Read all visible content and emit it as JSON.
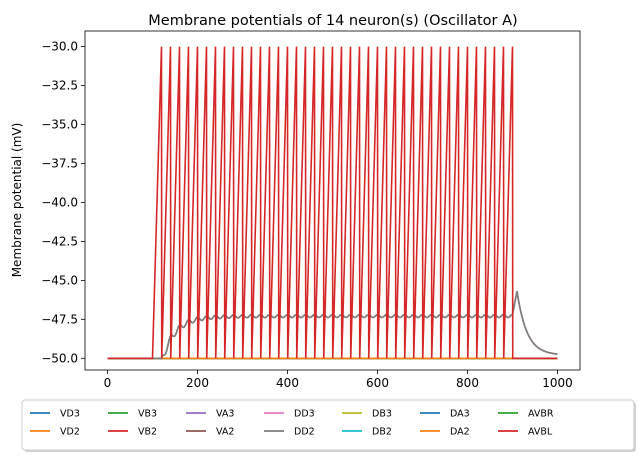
{
  "chart_data": {
    "type": "line",
    "title": "Membrane potentials of 14 neuron(s) (Oscillator A)",
    "xlabel": "",
    "ylabel": "Membrane potential (mV)",
    "xlim": [
      -50,
      1050
    ],
    "ylim": [
      -50.75,
      -29.0
    ],
    "xticks": [
      0,
      200,
      400,
      600,
      800,
      1000
    ],
    "yticks": [
      -50.0,
      -47.5,
      -45.0,
      -42.5,
      -40.0,
      -37.5,
      -35.0,
      -32.5,
      -30.0
    ],
    "ytick_labels": [
      "−50.0",
      "−47.5",
      "−45.0",
      "−42.5",
      "−40.0",
      "−37.5",
      "−35.0",
      "−32.5",
      "−30.0"
    ],
    "grid": false,
    "legend_position": "bottom-center",
    "legend_entries": [
      {
        "name": "VD3",
        "color": "#1f77b4"
      },
      {
        "name": "VD2",
        "color": "#ff7f0e"
      },
      {
        "name": "VB3",
        "color": "#2ca02c"
      },
      {
        "name": "VB2",
        "color": "#d62728"
      },
      {
        "name": "VA3",
        "color": "#9467bd"
      },
      {
        "name": "VA2",
        "color": "#8c564b"
      },
      {
        "name": "DD3",
        "color": "#e377c2"
      },
      {
        "name": "DD2",
        "color": "#7f7f7f"
      },
      {
        "name": "DB3",
        "color": "#bcbd22"
      },
      {
        "name": "DB2",
        "color": "#17becf"
      },
      {
        "name": "DA3",
        "color": "#1f77b4"
      },
      {
        "name": "DA2",
        "color": "#ff7f0e"
      },
      {
        "name": "AVBR",
        "color": "#2ca02c"
      },
      {
        "name": "AVBL",
        "color": "#d62728"
      }
    ],
    "baseline_mv": -50.0,
    "spiking": {
      "start_ms": 100,
      "first_peak_ms": 120,
      "stop_ms": 900,
      "period_ms": 20,
      "peak_mv": -30.0,
      "reset_mv": -50.0,
      "colors": [
        "#d62728"
      ]
    },
    "subthreshold": {
      "plateau_mv": -47.2,
      "tail_peak_mv": -45.7,
      "tail_peak_ms": 910,
      "end_mv": -49.8,
      "colors": [
        "#8c564b",
        "#7f7f7f"
      ]
    }
  }
}
